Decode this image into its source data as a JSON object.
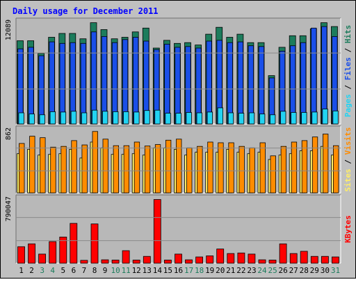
{
  "chart_data": {
    "type": "bar",
    "title": "Daily usage for December 2011",
    "categories": [
      "1",
      "2",
      "3",
      "4",
      "5",
      "6",
      "7",
      "8",
      "9",
      "10",
      "11",
      "12",
      "13",
      "14",
      "15",
      "16",
      "17",
      "18",
      "19",
      "20",
      "21",
      "22",
      "23",
      "24",
      "25",
      "26",
      "27",
      "28",
      "29",
      "30",
      "31"
    ],
    "weekend_days": [
      "3",
      "4",
      "10",
      "11",
      "17",
      "18",
      "24",
      "25",
      "31"
    ],
    "panels": [
      {
        "name": "hits",
        "scale_label": "12089",
        "ymax": 13800,
        "labels": [
          "Pages",
          "Files",
          "Hits"
        ],
        "series": [
          {
            "name": "Hits",
            "color": "#1c7c5c",
            "values": [
              10850,
              10850,
              9200,
              11300,
              11800,
              11800,
              11100,
              13200,
              12300,
              11100,
              11300,
              12000,
              12500,
              9900,
              10900,
              10500,
              10600,
              10300,
              11700,
              12600,
              11300,
              11700,
              10600,
              10600,
              6300,
              10000,
              11500,
              11500,
              12400,
              13200,
              12700
            ]
          },
          {
            "name": "Files",
            "color": "#1a4fe8",
            "values": [
              9800,
              10000,
              8900,
              10700,
              10500,
              10600,
              10500,
              12000,
              11400,
              10600,
              11000,
              11300,
              10800,
              9700,
              10400,
              10000,
              10100,
              9900,
              10800,
              10900,
              10600,
              10700,
              10200,
              10100,
              6000,
              9500,
              10200,
              10600,
              12500,
              12700,
              11400
            ]
          },
          {
            "name": "Pages",
            "color": "#22d3f2",
            "values": [
              1450,
              1300,
              1200,
              1600,
              1550,
              1650,
              1450,
              1800,
              1650,
              1600,
              1600,
              1550,
              1750,
              1800,
              1400,
              1400,
              1500,
              1450,
              1550,
              2100,
              1450,
              1400,
              1450,
              1300,
              1200,
              1650,
              1500,
              1500,
              1550,
              1950,
              1700
            ]
          }
        ]
      },
      {
        "name": "visits",
        "scale_label": "862",
        "ymax": 920,
        "labels": [
          "Sites",
          "Visits"
        ],
        "series": [
          {
            "name": "Visits",
            "color": "#ff8c00",
            "values": [
              680,
              780,
              760,
              630,
              640,
              720,
              660,
              845,
              740,
              650,
              650,
              700,
              645,
              665,
              725,
              740,
              620,
              640,
              700,
              690,
              690,
              640,
              620,
              690,
              510,
              640,
              700,
              720,
              770,
              810,
              650
            ]
          },
          {
            "name": "Sites",
            "color": "#ffee66",
            "values": [
              540,
              600,
              520,
              530,
              540,
              600,
              480,
              700,
              620,
              530,
              530,
              540,
              520,
              620,
              620,
              600,
              520,
              560,
              560,
              560,
              600,
              560,
              540,
              560,
              460,
              520,
              540,
              580,
              580,
              640,
              520
            ]
          }
        ]
      },
      {
        "name": "kbytes",
        "scale_label": "790047",
        "ymax": 1200000,
        "labels": [
          "KBytes"
        ],
        "series": [
          {
            "name": "KBytes",
            "color": "#ff0000",
            "values": [
              290000,
              340000,
              160000,
              380000,
              460000,
              700000,
              50000,
              690000,
              60000,
              55000,
              220000,
              55000,
              120000,
              1120000,
              55000,
              160000,
              60000,
              110000,
              130000,
              250000,
              170000,
              180000,
              160000,
              60000,
              55000,
              340000,
              170000,
              210000,
              120000,
              120000,
              110000
            ]
          }
        ]
      }
    ]
  }
}
